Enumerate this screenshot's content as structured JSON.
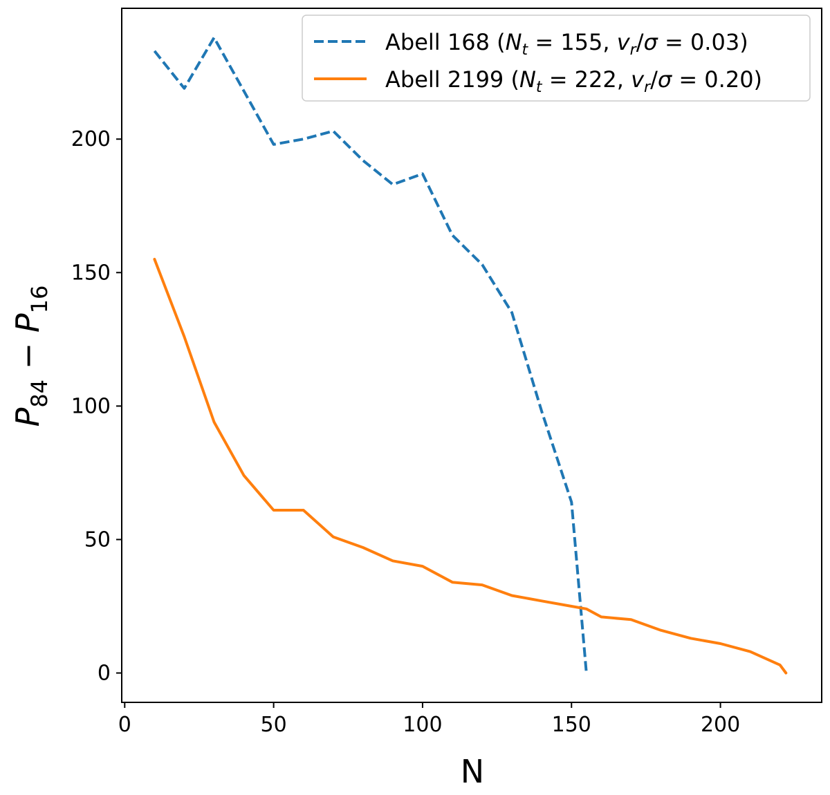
{
  "chart_data": {
    "type": "line",
    "title": "",
    "xlabel": "N",
    "ylabel": {
      "base": "P",
      "sub1": "84",
      "minus": " − ",
      "sub2": "16"
    },
    "xlim": [
      -1,
      234
    ],
    "ylim": [
      -11,
      249
    ],
    "xticks": [
      0,
      50,
      100,
      150,
      200
    ],
    "yticks": [
      0,
      50,
      100,
      150,
      200
    ],
    "grid": false,
    "legend_position": "top-right",
    "series": [
      {
        "name": "Abell 168",
        "legend": {
          "prefix": "Abell 168 (",
          "Nsym": "N",
          "Nsub": "t",
          "Nval": " = 155, ",
          "vsym": "v",
          "vsub": "r",
          "vmid": "/",
          "sig": "σ",
          "vval": " = 0.03)"
        },
        "color": "#1f77b4",
        "style": "dashed",
        "x": [
          10,
          20,
          30,
          40,
          50,
          60,
          70,
          80,
          90,
          100,
          110,
          120,
          130,
          140,
          150,
          155
        ],
        "y": [
          233,
          219,
          238,
          218,
          198,
          200,
          203,
          192,
          183,
          187,
          164,
          153,
          135,
          98,
          64,
          0
        ]
      },
      {
        "name": "Abell 2199",
        "legend": {
          "prefix": "Abell 2199 (",
          "Nsym": "N",
          "Nsub": "t",
          "Nval": " = 222, ",
          "vsym": "v",
          "vsub": "r",
          "vmid": "/",
          "sig": "σ",
          "vval": " = 0.20)"
        },
        "color": "#ff7f0e",
        "style": "solid",
        "x": [
          10,
          20,
          30,
          40,
          50,
          60,
          70,
          80,
          90,
          100,
          110,
          120,
          130,
          140,
          150,
          155,
          160,
          170,
          180,
          190,
          200,
          210,
          220,
          222
        ],
        "y": [
          155,
          126,
          94,
          74,
          61,
          61,
          51,
          47,
          42,
          40,
          34,
          33,
          29,
          27,
          25,
          24,
          21,
          20,
          16,
          13,
          11,
          8,
          3,
          0
        ]
      }
    ]
  }
}
